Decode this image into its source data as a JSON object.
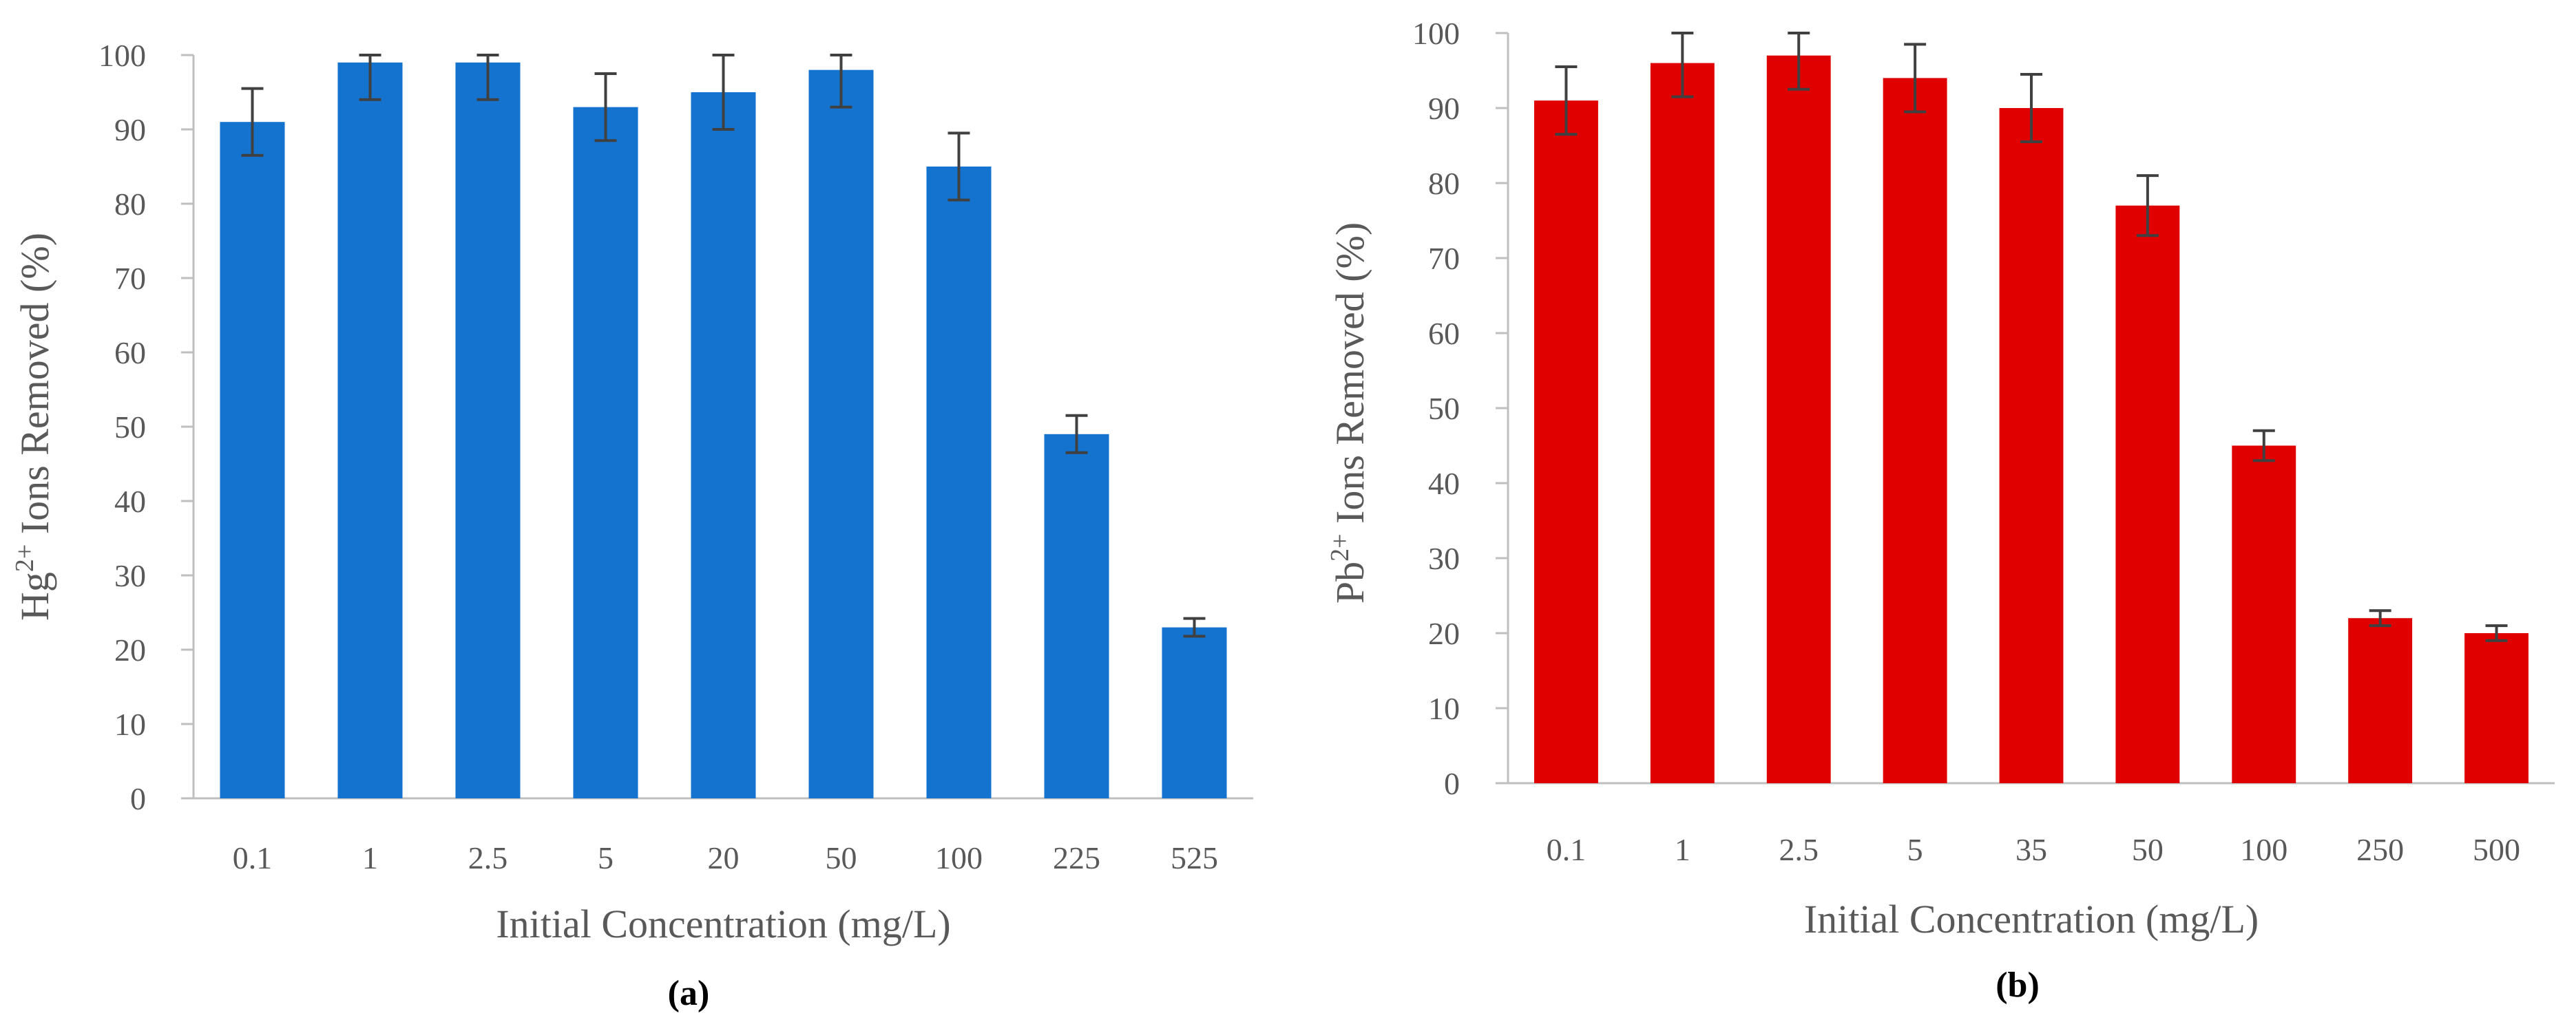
{
  "chart_data": [
    {
      "type": "bar",
      "panel_label": "(a)",
      "categories": [
        "0.1",
        "1",
        "2.5",
        "5",
        "20",
        "50",
        "100",
        "225",
        "525"
      ],
      "values": [
        91,
        99,
        99,
        93,
        95,
        98,
        85,
        49,
        23
      ],
      "errors": [
        4.5,
        5,
        5,
        4.5,
        5,
        5,
        4.5,
        2.5,
        1.2
      ],
      "xlabel": "Initial Concentration (mg/L)",
      "ylabel_prefix": "Hg",
      "ylabel_sup": "2+",
      "ylabel_suffix": " Ions Removed (%)",
      "ylim": [
        0,
        100
      ],
      "yticks": [
        "0",
        "10",
        "20",
        "30",
        "40",
        "50",
        "60",
        "70",
        "80",
        "90",
        "100"
      ],
      "grid": false,
      "bar_color": "#1473CF",
      "error_color": "#404040"
    },
    {
      "type": "bar",
      "panel_label": "(b)",
      "categories": [
        "0.1",
        "1",
        "2.5",
        "5",
        "35",
        "50",
        "100",
        "250",
        "500"
      ],
      "values": [
        91,
        96,
        97,
        94,
        90,
        77,
        45,
        22,
        20
      ],
      "errors": [
        4.5,
        4.5,
        4.5,
        4.5,
        4.5,
        4,
        2,
        1,
        1
      ],
      "xlabel": "Initial Concentration (mg/L)",
      "ylabel_prefix": "Pb",
      "ylabel_sup": "2+",
      "ylabel_suffix": " Ions Removed (%)",
      "ylim": [
        0,
        100
      ],
      "yticks": [
        "0",
        "10",
        "20",
        "30",
        "40",
        "50",
        "60",
        "70",
        "80",
        "90",
        "100"
      ],
      "grid": false,
      "bar_color": "#E00000",
      "error_color": "#404040"
    }
  ]
}
